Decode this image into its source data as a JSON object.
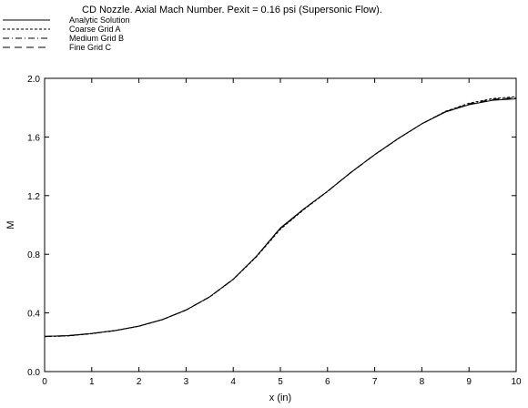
{
  "chart_data": {
    "type": "line",
    "title": "CD Nozzle. Axial Mach Number. Pexit = 0.16 psi (Supersonic Flow).",
    "xlabel": "x (in)",
    "ylabel": "M",
    "xlim": [
      0,
      10
    ],
    "ylim": [
      0.0,
      2.0
    ],
    "xticks": [
      "0",
      "1",
      "2",
      "3",
      "4",
      "5",
      "6",
      "7",
      "8",
      "9",
      "10"
    ],
    "yticks": [
      "0.0",
      "0.4",
      "0.8",
      "1.2",
      "1.6",
      "2.0"
    ],
    "grid": false,
    "legend": "top-left",
    "series": [
      {
        "name": "Analytic Solution",
        "dash": "solid",
        "x": [
          0,
          0.5,
          1,
          1.5,
          2,
          2.5,
          3,
          3.5,
          4,
          4.5,
          5,
          5.5,
          6,
          6.5,
          7,
          7.5,
          8,
          8.5,
          9,
          9.5,
          10
        ],
        "y": [
          0.24,
          0.245,
          0.26,
          0.28,
          0.31,
          0.355,
          0.42,
          0.51,
          0.63,
          0.79,
          0.98,
          1.11,
          1.23,
          1.36,
          1.48,
          1.59,
          1.69,
          1.77,
          1.82,
          1.85,
          1.86
        ]
      },
      {
        "name": "Coarse Grid A",
        "dash": "short",
        "x": [
          0,
          0.5,
          1,
          1.5,
          2,
          2.5,
          3,
          3.5,
          4,
          4.5,
          5,
          5.5,
          6,
          6.5,
          7,
          7.5,
          8,
          8.5,
          9,
          9.5,
          10
        ],
        "y": [
          0.238,
          0.243,
          0.258,
          0.279,
          0.309,
          0.354,
          0.419,
          0.508,
          0.628,
          0.785,
          0.97,
          1.105,
          1.228,
          1.358,
          1.478,
          1.588,
          1.69,
          1.775,
          1.83,
          1.862,
          1.875
        ]
      },
      {
        "name": "Medium Grid B",
        "dash": "dashdot",
        "x": [
          0,
          0.5,
          1,
          1.5,
          2,
          2.5,
          3,
          3.5,
          4,
          4.5,
          5,
          5.5,
          6,
          6.5,
          7,
          7.5,
          8,
          8.5,
          9,
          9.5,
          10
        ],
        "y": [
          0.239,
          0.244,
          0.259,
          0.28,
          0.31,
          0.355,
          0.42,
          0.509,
          0.629,
          0.788,
          0.975,
          1.108,
          1.229,
          1.359,
          1.479,
          1.589,
          1.69,
          1.773,
          1.826,
          1.857,
          1.868
        ]
      },
      {
        "name": "Fine Grid C",
        "dash": "long",
        "x": [
          0,
          0.5,
          1,
          1.5,
          2,
          2.5,
          3,
          3.5,
          4,
          4.5,
          5,
          5.5,
          6,
          6.5,
          7,
          7.5,
          8,
          8.5,
          9,
          9.5,
          10
        ],
        "y": [
          0.24,
          0.245,
          0.26,
          0.28,
          0.31,
          0.355,
          0.42,
          0.51,
          0.63,
          0.789,
          0.978,
          1.11,
          1.23,
          1.36,
          1.48,
          1.59,
          1.69,
          1.771,
          1.823,
          1.853,
          1.864
        ]
      }
    ]
  }
}
